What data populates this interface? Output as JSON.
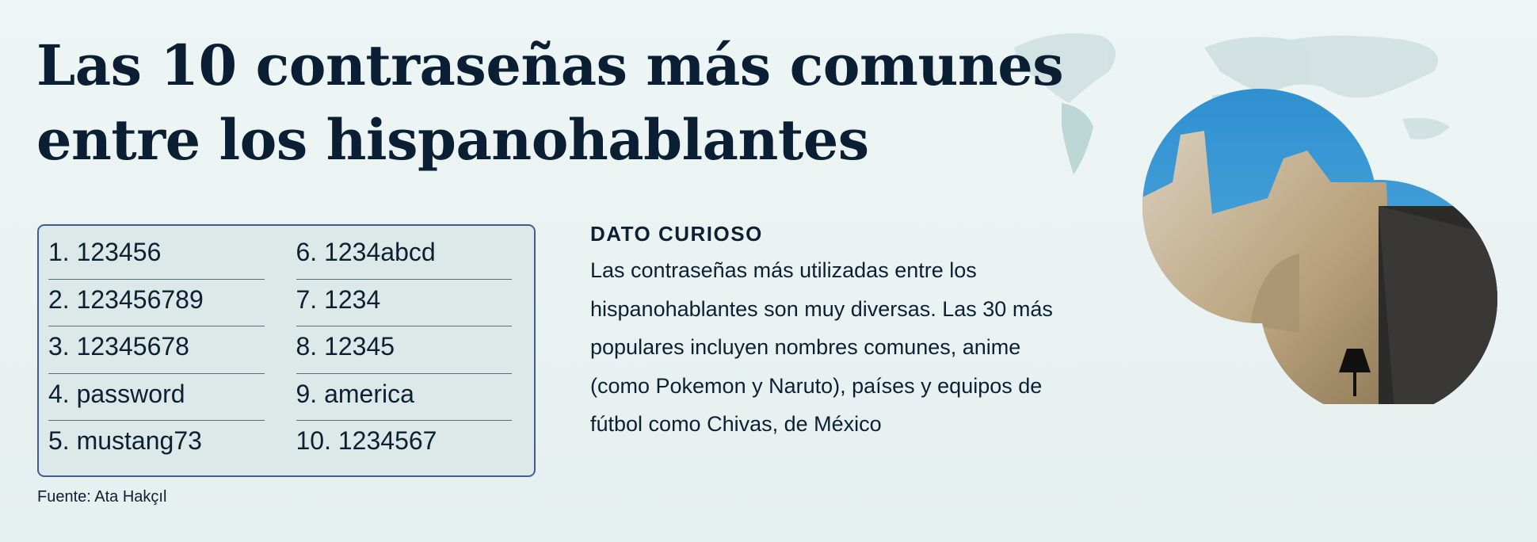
{
  "title": "Las 10 contraseñas más comunes entre los hispanohablantes",
  "list": {
    "left": [
      "1. 123456",
      "2. 123456789",
      "3. 12345678",
      "4. password",
      "5. mustang73"
    ],
    "right": [
      "6. 1234abcd",
      "7. 1234",
      "8. 12345",
      "9. america",
      "10. 1234567"
    ]
  },
  "source": "Fuente: Ata Hakçıl",
  "fact": {
    "heading": "DATO CURIOSO",
    "body": "Las contraseñas más utilizadas entre los hispanohablantes son muy diversas. Las 30 más populares incluyen nombres comunes, anime (como Pokemon y Naruto), países y equipos de fútbol como Chivas, de México"
  },
  "colors": {
    "title": "#0a1f33",
    "box_border": "#3e5f96",
    "box_bg": "#dde8e8",
    "sky": "#3a9ad6"
  }
}
